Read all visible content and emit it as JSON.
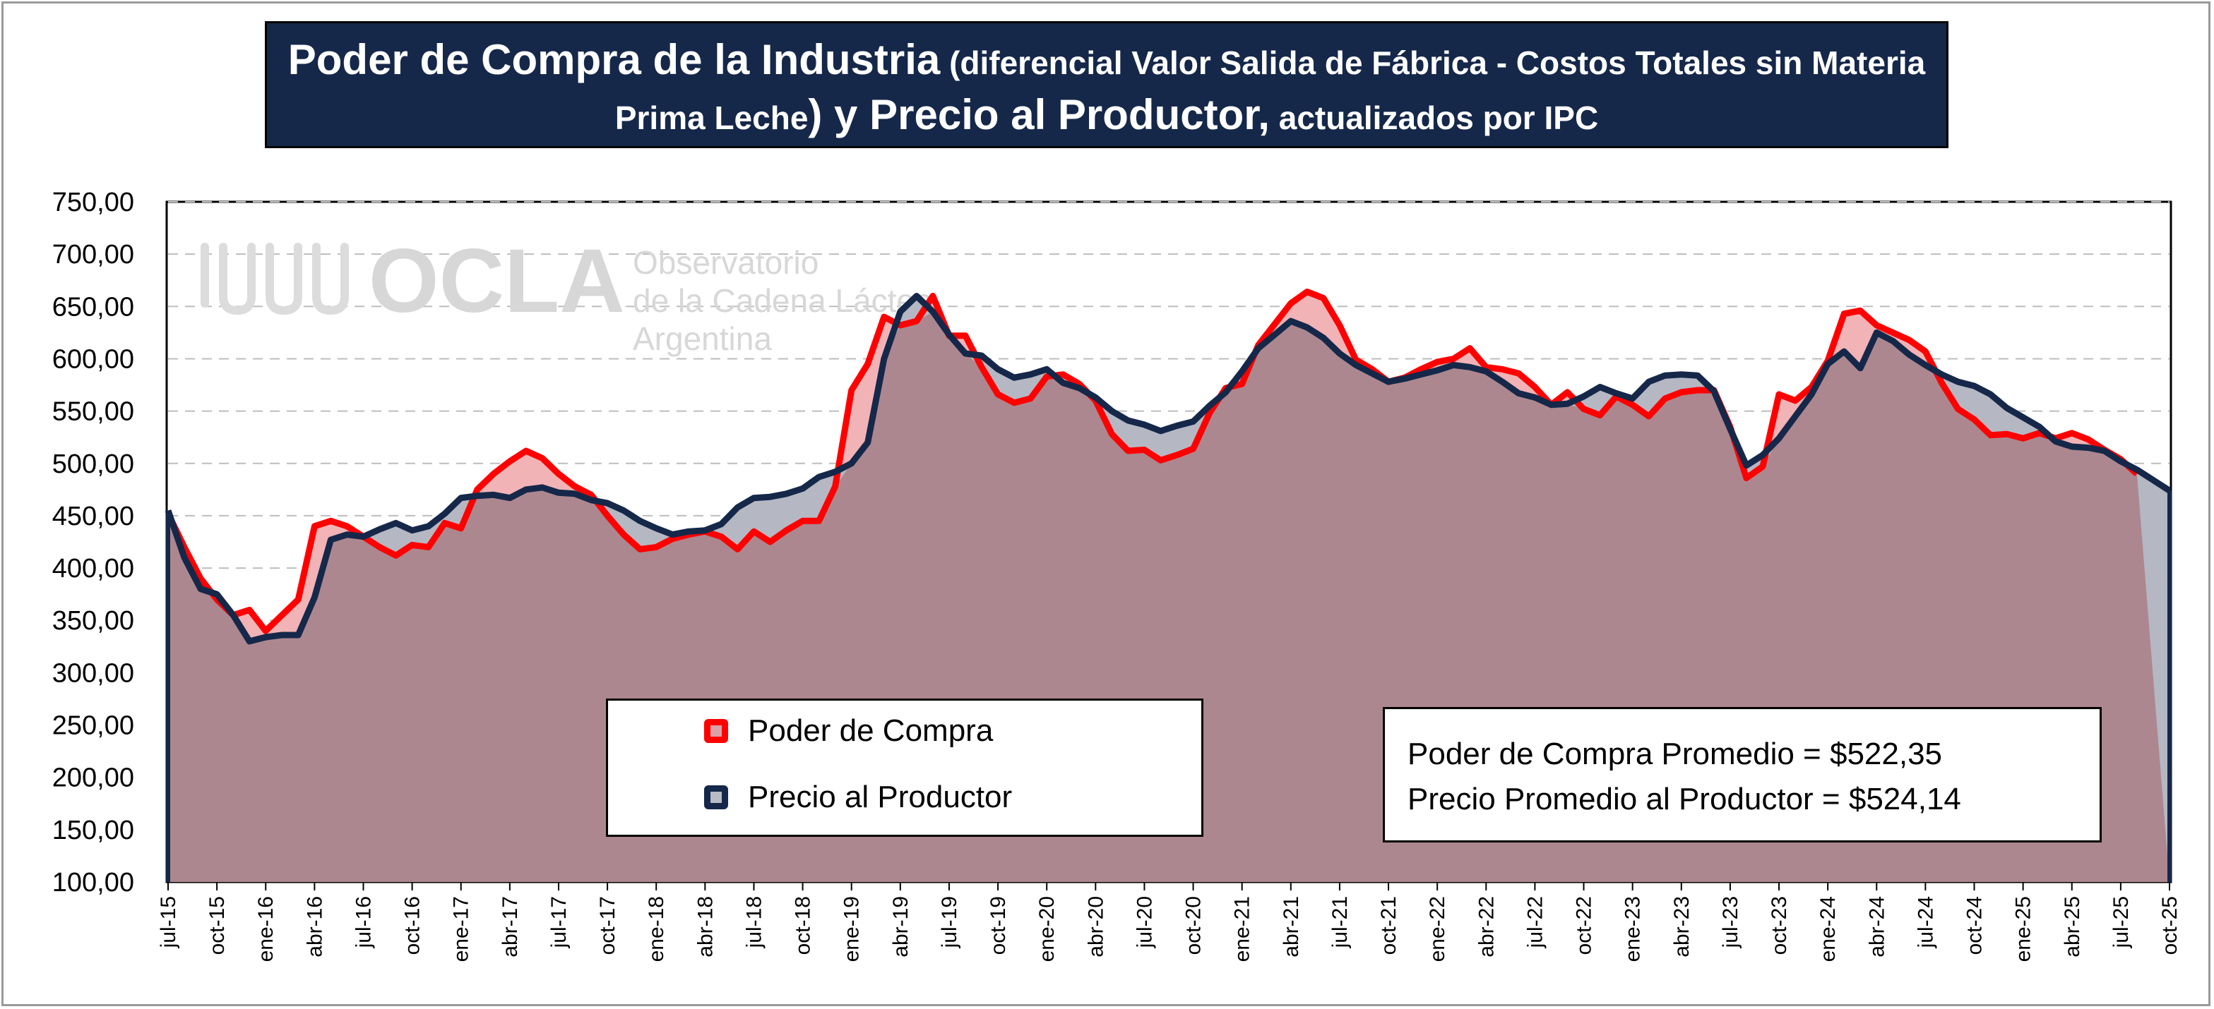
{
  "title": {
    "part1": "Poder de Compra de la Industria",
    "part2": " (diferencial Valor Salida de Fábrica - Costos Totales sin Materia",
    "part3": "Prima Leche",
    "part4": ") y ",
    "part5": "Precio al Productor,",
    "part6": " actualizados por IPC"
  },
  "watermark": {
    "name": "OCLA",
    "line1": "Observatorio",
    "line2": "de la Cadena Láctea",
    "line3": "Argentina"
  },
  "legend": [
    {
      "label": "Poder de Compra",
      "color": "#ff0000"
    },
    {
      "label": "Precio al Productor",
      "color": "#15284a"
    }
  ],
  "stats": {
    "line1": "Poder de Compra Promedio = $522,35",
    "line2": "Precio Promedio al Productor = $524,14"
  },
  "colors": {
    "poder_line": "#ff0000",
    "poder_fill": "#f2b3b6",
    "precio_line": "#15284a",
    "precio_fill": "#b5b8c3",
    "overlap_fill": "#ad878f",
    "title_bg": "#15284a"
  },
  "chart_data": {
    "type": "area",
    "title": "Poder de Compra de la Industria (diferencial Valor Salida de Fábrica - Costos Totales sin Materia Prima Leche) y Precio al Productor, actualizados por IPC",
    "ylim": [
      100,
      750
    ],
    "yticks": [
      "100,00",
      "150,00",
      "200,00",
      "250,00",
      "300,00",
      "350,00",
      "400,00",
      "450,00",
      "500,00",
      "550,00",
      "600,00",
      "650,00",
      "700,00",
      "750,00"
    ],
    "grid": "horizontal-dashed",
    "legend_position": "bottom-center",
    "x_labels": [
      "jul-15",
      "oct-15",
      "ene-16",
      "abr-16",
      "jul-16",
      "oct-16",
      "ene-17",
      "abr-17",
      "jul-17",
      "oct-17",
      "ene-18",
      "abr-18",
      "jul-18",
      "oct-18",
      "ene-19",
      "abr-19",
      "jul-19",
      "oct-19",
      "ene-20",
      "abr-20",
      "jul-20",
      "oct-20",
      "ene-21",
      "abr-21",
      "jul-21",
      "oct-21",
      "ene-22",
      "abr-22",
      "jul-22",
      "oct-22",
      "ene-23",
      "abr-23",
      "jul-23",
      "oct-23",
      "ene-24",
      "abr-24",
      "jul-24",
      "oct-24",
      "ene-25",
      "abr-25",
      "jul-25",
      "oct-25"
    ],
    "x_months": [
      "jul-15",
      "ago-15",
      "sep-15",
      "oct-15",
      "nov-15",
      "dic-15",
      "ene-16",
      "feb-16",
      "mar-16",
      "abr-16",
      "may-16",
      "jun-16",
      "jul-16",
      "ago-16",
      "sep-16",
      "oct-16",
      "nov-16",
      "dic-16",
      "ene-17",
      "feb-17",
      "mar-17",
      "abr-17",
      "may-17",
      "jun-17",
      "jul-17",
      "ago-17",
      "sep-17",
      "oct-17",
      "nov-17",
      "dic-17",
      "ene-18",
      "feb-18",
      "mar-18",
      "abr-18",
      "may-18",
      "jun-18",
      "jul-18",
      "ago-18",
      "sep-18",
      "oct-18",
      "nov-18",
      "dic-18",
      "ene-19",
      "feb-19",
      "mar-19",
      "abr-19",
      "may-19",
      "jun-19",
      "jul-19",
      "ago-19",
      "sep-19",
      "oct-19",
      "nov-19",
      "dic-19",
      "ene-20",
      "feb-20",
      "mar-20",
      "abr-20",
      "may-20",
      "jun-20",
      "jul-20",
      "ago-20",
      "sep-20",
      "oct-20",
      "nov-20",
      "dic-20",
      "ene-21",
      "feb-21",
      "mar-21",
      "abr-21",
      "may-21",
      "jun-21",
      "jul-21",
      "ago-21",
      "sep-21",
      "oct-21",
      "nov-21",
      "dic-21",
      "ene-22",
      "feb-22",
      "mar-22",
      "abr-22",
      "may-22",
      "jun-22",
      "jul-22",
      "ago-22",
      "sep-22",
      "oct-22",
      "nov-22",
      "dic-22",
      "ene-23",
      "feb-23",
      "mar-23",
      "abr-23",
      "may-23",
      "jun-23",
      "jul-23",
      "ago-23",
      "sep-23",
      "oct-23",
      "nov-23",
      "dic-23",
      "ene-24",
      "feb-24",
      "mar-24",
      "abr-24",
      "may-24",
      "jun-24",
      "jul-24",
      "ago-24",
      "sep-24",
      "oct-24",
      "nov-24",
      "dic-24",
      "ene-25",
      "feb-25",
      "mar-25",
      "abr-25",
      "may-25",
      "jun-25",
      "jul-25",
      "ago-25",
      "sep-25",
      "oct-25"
    ],
    "series": [
      {
        "name": "Poder de Compra",
        "values": [
          452,
          420,
          390,
          370,
          355,
          360,
          340,
          355,
          370,
          440,
          445,
          440,
          430,
          420,
          412,
          422,
          420,
          443,
          438,
          475,
          490,
          502,
          512,
          505,
          490,
          478,
          470,
          450,
          432,
          418,
          420,
          428,
          432,
          435,
          430,
          418,
          435,
          425,
          436,
          445,
          445,
          478,
          570,
          595,
          640,
          632,
          636,
          660,
          622,
          622,
          592,
          566,
          558,
          562,
          583,
          585,
          576,
          560,
          528,
          512,
          513,
          503,
          508,
          514,
          548,
          572,
          576,
          613,
          633,
          653,
          664,
          658,
          632,
          599,
          590,
          578,
          582,
          590,
          597,
          600,
          610,
          592,
          590,
          586,
          573,
          556,
          568,
          552,
          546,
          564,
          556,
          545,
          562,
          568,
          570,
          570,
          535,
          486,
          497,
          566,
          560,
          573,
          598,
          643,
          646,
          632,
          625,
          618,
          607,
          577,
          552,
          542,
          527,
          528,
          524,
          529,
          524,
          529,
          523,
          513,
          504,
          490
        ]
      },
      {
        "name": "Precio al Productor",
        "values": [
          455,
          410,
          380,
          375,
          355,
          330,
          334,
          336,
          336,
          372,
          427,
          432,
          430,
          437,
          443,
          436,
          440,
          452,
          467,
          469,
          470,
          467,
          475,
          477,
          472,
          471,
          465,
          462,
          455,
          445,
          438,
          432,
          435,
          436,
          442,
          458,
          467,
          468,
          471,
          476,
          487,
          492,
          500,
          520,
          600,
          645,
          660,
          645,
          623,
          605,
          603,
          590,
          582,
          585,
          590,
          577,
          572,
          563,
          550,
          541,
          537,
          531,
          536,
          540,
          555,
          568,
          588,
          610,
          623,
          636,
          630,
          620,
          605,
          594,
          586,
          578,
          581,
          585,
          589,
          594,
          592,
          588,
          578,
          567,
          563,
          556,
          557,
          564,
          573,
          567,
          562,
          578,
          584,
          585,
          584,
          569,
          533,
          498,
          508,
          524,
          545,
          566,
          595,
          607,
          591,
          625,
          617,
          604,
          594,
          585,
          578,
          574,
          566,
          553,
          544,
          535,
          521,
          516,
          515,
          512,
          502,
          494,
          484,
          474
        ]
      }
    ]
  }
}
